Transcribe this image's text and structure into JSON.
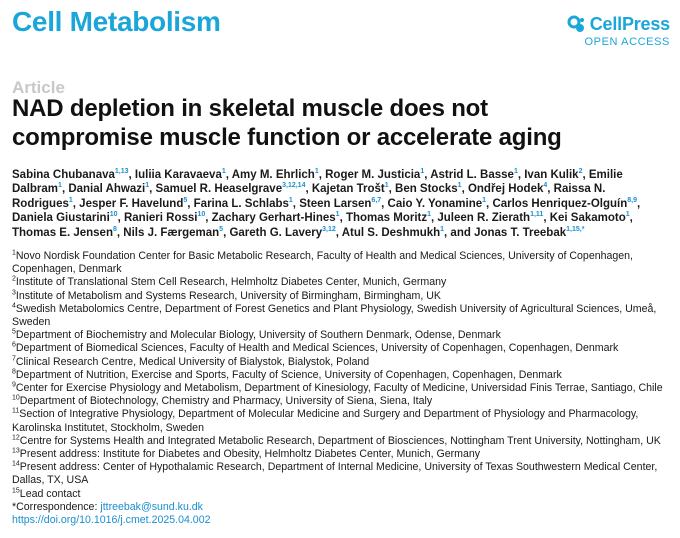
{
  "journal": "Cell Metabolism",
  "publisher": {
    "name": "CellPress",
    "access": "OPEN ACCESS"
  },
  "colors": {
    "accent": "#1aa6d8",
    "link": "#1a8fd0",
    "label_gray": "#c8c8c8"
  },
  "article_label": "Article",
  "title_line1": "NAD depletion in skeletal muscle does not",
  "title_line2": "compromise muscle function or accelerate aging",
  "authors": [
    {
      "name": "Sabina Chubanava",
      "sup": "1,13"
    },
    {
      "name": "Iuliia Karavaeva",
      "sup": "1"
    },
    {
      "name": "Amy M. Ehrlich",
      "sup": "1"
    },
    {
      "name": "Roger M. Justicia",
      "sup": "1"
    },
    {
      "name": "Astrid L. Basse",
      "sup": "1"
    },
    {
      "name": "Ivan Kulik",
      "sup": "2"
    },
    {
      "name": "Emilie Dalbram",
      "sup": "1"
    },
    {
      "name": "Danial Ahwazi",
      "sup": "1"
    },
    {
      "name": "Samuel R. Heaselgrave",
      "sup": "3,12,14"
    },
    {
      "name": "Kajetan Trošt",
      "sup": "1"
    },
    {
      "name": "Ben Stocks",
      "sup": "1"
    },
    {
      "name": "Ondřej Hodek",
      "sup": "4"
    },
    {
      "name": "Raissa N. Rodrigues",
      "sup": "1"
    },
    {
      "name": "Jesper F. Havelund",
      "sup": "5"
    },
    {
      "name": "Farina L. Schlabs",
      "sup": "1"
    },
    {
      "name": "Steen Larsen",
      "sup": "6,7"
    },
    {
      "name": "Caio Y. Yonamine",
      "sup": "1"
    },
    {
      "name": "Carlos Henriquez-Olguín",
      "sup": "8,9"
    },
    {
      "name": "Daniela Giustarini",
      "sup": "10"
    },
    {
      "name": "Ranieri Rossi",
      "sup": "10"
    },
    {
      "name": "Zachary Gerhart-Hines",
      "sup": "1"
    },
    {
      "name": "Thomas Moritz",
      "sup": "1"
    },
    {
      "name": "Juleen R. Zierath",
      "sup": "1,11"
    },
    {
      "name": "Kei Sakamoto",
      "sup": "1"
    },
    {
      "name": "Thomas E. Jensen",
      "sup": "8"
    },
    {
      "name": "Nils J. Færgeman",
      "sup": "5"
    },
    {
      "name": "Gareth G. Lavery",
      "sup": "3,12"
    },
    {
      "name": "Atul S. Deshmukh",
      "sup": "1"
    },
    {
      "name": "Jonas T. Treebak",
      "sup": "1,15,*"
    }
  ],
  "affiliations": [
    {
      "sup": "1",
      "text": "Novo Nordisk Foundation Center for Basic Metabolic Research, Faculty of Health and Medical Sciences, University of Copenhagen, Copenhagen, Denmark"
    },
    {
      "sup": "2",
      "text": "Institute of Translational Stem Cell Research, Helmholtz Diabetes Center, Munich, Germany"
    },
    {
      "sup": "3",
      "text": "Institute of Metabolism and Systems Research, University of Birmingham, Birmingham, UK"
    },
    {
      "sup": "4",
      "text": "Swedish Metabolomics Centre, Department of Forest Genetics and Plant Physiology, Swedish University of Agricultural Sciences, Umeå, Sweden"
    },
    {
      "sup": "5",
      "text": "Department of Biochemistry and Molecular Biology, University of Southern Denmark, Odense, Denmark"
    },
    {
      "sup": "6",
      "text": "Department of Biomedical Sciences, Faculty of Health and Medical Sciences, University of Copenhagen, Copenhagen, Denmark"
    },
    {
      "sup": "7",
      "text": "Clinical Research Centre, Medical University of Bialystok, Bialystok, Poland"
    },
    {
      "sup": "8",
      "text": "Department of Nutrition, Exercise and Sports, Faculty of Science, University of Copenhagen, Copenhagen, Denmark"
    },
    {
      "sup": "9",
      "text": "Center for Exercise Physiology and Metabolism, Department of Kinesiology, Faculty of Medicine, Universidad Finis Terrae, Santiago, Chile"
    },
    {
      "sup": "10",
      "text": "Department of Biotechnology, Chemistry and Pharmacy, University of Siena, Siena, Italy"
    },
    {
      "sup": "11",
      "text": "Section of Integrative Physiology, Department of Molecular Medicine and Surgery and Department of Physiology and Pharmacology, Karolinska Institutet, Stockholm, Sweden"
    },
    {
      "sup": "12",
      "text": "Centre for Systems Health and Integrated Metabolic Research, Department of Biosciences, Nottingham Trent University, Nottingham, UK"
    },
    {
      "sup": "13",
      "text": "Present address: Institute for Diabetes and Obesity, Helmholtz Diabetes Center, Munich, Germany"
    },
    {
      "sup": "14",
      "text": "Present address: Center of Hypothalamic Research, Department of Internal Medicine, University of Texas Southwestern Medical Center, Dallas, TX, USA"
    },
    {
      "sup": "15",
      "text": "Lead contact"
    }
  ],
  "correspondence_label": "*Correspondence: ",
  "correspondence_email": "jttreebak@sund.ku.dk",
  "doi": "https://doi.org/10.1016/j.cmet.2025.04.002"
}
